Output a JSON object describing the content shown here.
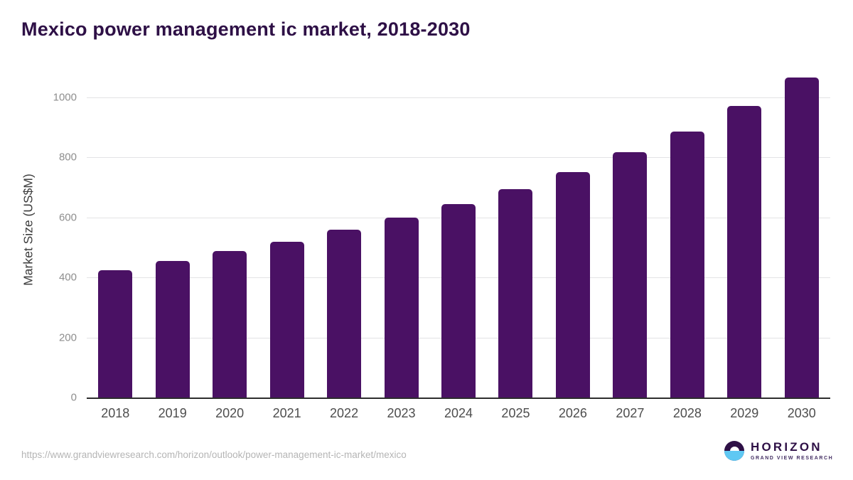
{
  "chart_data": {
    "type": "bar",
    "title": "Mexico power management ic market, 2018-2030",
    "categories": [
      "2018",
      "2019",
      "2020",
      "2021",
      "2022",
      "2023",
      "2024",
      "2025",
      "2026",
      "2027",
      "2028",
      "2029",
      "2030"
    ],
    "values": [
      424,
      455,
      487,
      520,
      559,
      600,
      644,
      695,
      752,
      817,
      886,
      971,
      1066
    ],
    "xlabel": "",
    "ylabel": "Market Size (US$M)",
    "ylim": [
      0,
      1090
    ],
    "yticks": [
      0,
      200,
      400,
      600,
      800,
      1000
    ],
    "grid": "horizontal",
    "legend": "none",
    "bar_color": "#4a1164"
  },
  "footer": {
    "source_url": "https://www.grandviewresearch.com/horizon/outlook/power-management-ic-market/mexico"
  },
  "logo": {
    "name": "HORIZON",
    "subtitle": "GRAND VIEW RESEARCH"
  },
  "colors": {
    "bar": "#4a1164",
    "title_text": "#2e1046",
    "axis_line": "#2d2d2d",
    "gridline": "#e3e3e5",
    "ytick_text": "#8e8e8e",
    "xtick_text": "#4d4d4d",
    "url_text": "#b5b5b5",
    "logo_sky": "#2e1046",
    "logo_sea": "#5fc8f3"
  }
}
